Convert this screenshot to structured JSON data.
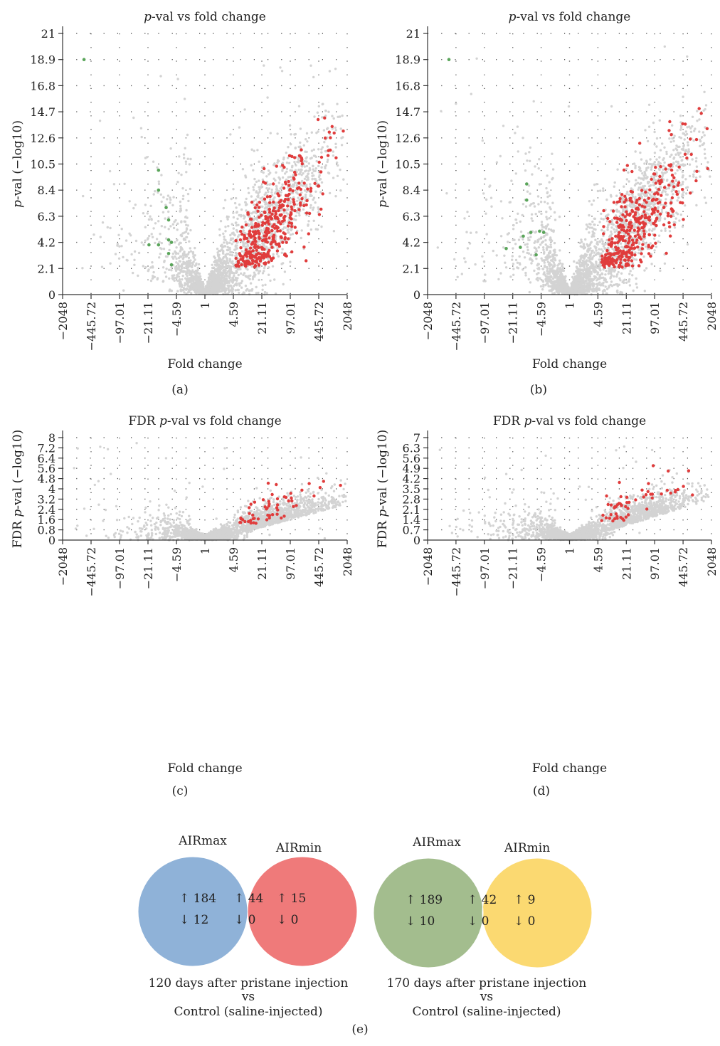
{
  "panels": [
    {
      "id": "a",
      "caption": "(a)",
      "title_prefix": "p",
      "title_rest": "-val vs fold change",
      "ylabel_prefix": "",
      "ylabel_italic": "p",
      "ylabel_rest": "-val (−log10)",
      "xlabel": "Fold change",
      "yticks": [
        "0",
        "2.1",
        "4.2",
        "6.3",
        "8.4",
        "10.5",
        "12.6",
        "14.7",
        "16.8",
        "18.9",
        "21"
      ],
      "ymax": 21,
      "xticks": [
        "−2048",
        "−445.72",
        "−97.01",
        "−21.11",
        "−4.59",
        "1",
        "4.59",
        "21.11",
        "97.01",
        "445.72",
        "2048"
      ]
    },
    {
      "id": "b",
      "caption": "(b)",
      "title_prefix": "p",
      "title_rest": "-val vs fold change",
      "ylabel_prefix": "",
      "ylabel_italic": "p",
      "ylabel_rest": "-val (−log10)",
      "xlabel": "Fold change",
      "yticks": [
        "0",
        "2.1",
        "4.2",
        "6.3",
        "8.4",
        "10.5",
        "12.6",
        "14.7",
        "16.8",
        "18.9",
        "21"
      ],
      "ymax": 21,
      "xticks": [
        "−2048",
        "−445.72",
        "−97.01",
        "−21.11",
        "−4.59",
        "1",
        "4.59",
        "21.11",
        "97.01",
        "445.72",
        "2048"
      ]
    },
    {
      "id": "c",
      "caption": "(c)",
      "title_prefix": "FDR ",
      "title_italic": "p",
      "title_rest": "-val vs fold change",
      "ylabel_prefix": "FDR ",
      "ylabel_italic": "p",
      "ylabel_rest": "-val (−log10)",
      "xlabel": "Fold change",
      "yticks": [
        "0",
        "0.8",
        "1.6",
        "2.4",
        "3.2",
        "4",
        "4.8",
        "5.6",
        "6.4",
        "7.2",
        "8"
      ],
      "ymax": 8,
      "xticks": [
        "−2048",
        "−445.72",
        "−97.01",
        "−21.11",
        "−4.59",
        "1",
        "4.59",
        "21.11",
        "97.01",
        "445.72",
        "2048"
      ]
    },
    {
      "id": "d",
      "caption": "(d)",
      "title_prefix": "FDR ",
      "title_italic": "p",
      "title_rest": "-val vs fold change",
      "ylabel_prefix": "FDR ",
      "ylabel_italic": "p",
      "ylabel_rest": "-val (−log10)",
      "xlabel": "Fold change",
      "yticks": [
        "0",
        "0.7",
        "1.4",
        "2.1",
        "2.8",
        "3.5",
        "4.2",
        "4.9",
        "5.6",
        "6.3",
        "7"
      ],
      "ymax": 7,
      "xticks": [
        "−2048",
        "−445.72",
        "−97.01",
        "−21.11",
        "−4.59",
        "1",
        "4.59",
        "21.11",
        "97.01",
        "445.72",
        "2048"
      ]
    }
  ],
  "chart_data": [
    {
      "type": "scatter",
      "panel": "a",
      "x_scale": "log2 fold change (symmetric)",
      "ylim": [
        0,
        21
      ],
      "series": [
        {
          "color": "#d9d9d9",
          "description_count_approx": 5000
        },
        {
          "color": "#e03c3c",
          "count_approx": 400
        },
        {
          "color": "#5aa55a",
          "points": [
            [
              -650,
              18.9
            ],
            [
              -20,
              4.0
            ],
            [
              -12,
              10.0
            ],
            [
              -12,
              8.4
            ],
            [
              -8,
              7.0
            ],
            [
              -7,
              6.0
            ],
            [
              -7,
              4.4
            ],
            [
              -7,
              3.3
            ],
            [
              -6,
              2.4
            ],
            [
              -12,
              4.0
            ],
            [
              -6,
              4.2
            ]
          ]
        }
      ],
      "grid": true
    },
    {
      "type": "scatter",
      "panel": "b",
      "ylim": [
        0,
        21
      ],
      "series": [
        {
          "color": "#d9d9d9"
        },
        {
          "color": "#e03c3c",
          "count_approx": 400
        },
        {
          "color": "#5aa55a",
          "points": [
            [
              -650,
              18.9
            ],
            [
              -30,
              3.7
            ],
            [
              -14,
              3.8
            ],
            [
              -10,
              8.9
            ],
            [
              -10,
              7.6
            ],
            [
              -8,
              5.0
            ],
            [
              -12,
              4.7
            ],
            [
              -5,
              5.1
            ],
            [
              -4,
              5.0
            ],
            [
              -6,
              3.2
            ]
          ]
        }
      ],
      "grid": true
    },
    {
      "type": "scatter",
      "panel": "c",
      "ylim": [
        0,
        8
      ],
      "series": [
        {
          "color": "#d9d9d9"
        },
        {
          "color": "#e03c3c",
          "count_approx": 60
        }
      ],
      "grid": true
    },
    {
      "type": "scatter",
      "panel": "d",
      "ylim": [
        0,
        7
      ],
      "series": [
        {
          "color": "#d9d9d9"
        },
        {
          "color": "#e03c3c",
          "count_approx": 60
        }
      ],
      "grid": true
    }
  ],
  "venn": [
    {
      "left_label": "AIRmax",
      "right_label": "AIRmin",
      "left_color": "#8fb2d8",
      "right_color": "#ef7a7a",
      "overlap_color": "#c44d63",
      "left_up": "↑ 184",
      "left_down": "↓ 12",
      "mid_up": "↑ 44",
      "mid_down": "↓ 0",
      "right_up": "↑ 15",
      "right_down": "↓ 0",
      "caption_line1": "120 days after pristane injection",
      "caption_line2": "vs",
      "caption_line3": "Control (saline-injected)"
    },
    {
      "left_label": "AIRmax",
      "right_label": "AIRmin",
      "left_color": "#a3bd8e",
      "right_color": "#fbd971",
      "overlap_color": "#c8b437",
      "left_up": "↑ 189",
      "left_down": "↓ 10",
      "mid_up": "↑ 42",
      "mid_down": "↓ 0",
      "right_up": "↑ 9",
      "right_down": "↓ 0",
      "caption_line1": "170 days after pristane injection",
      "caption_line2": "vs",
      "caption_line3": "Control (saline-injected)"
    }
  ],
  "e_caption": "(e)"
}
